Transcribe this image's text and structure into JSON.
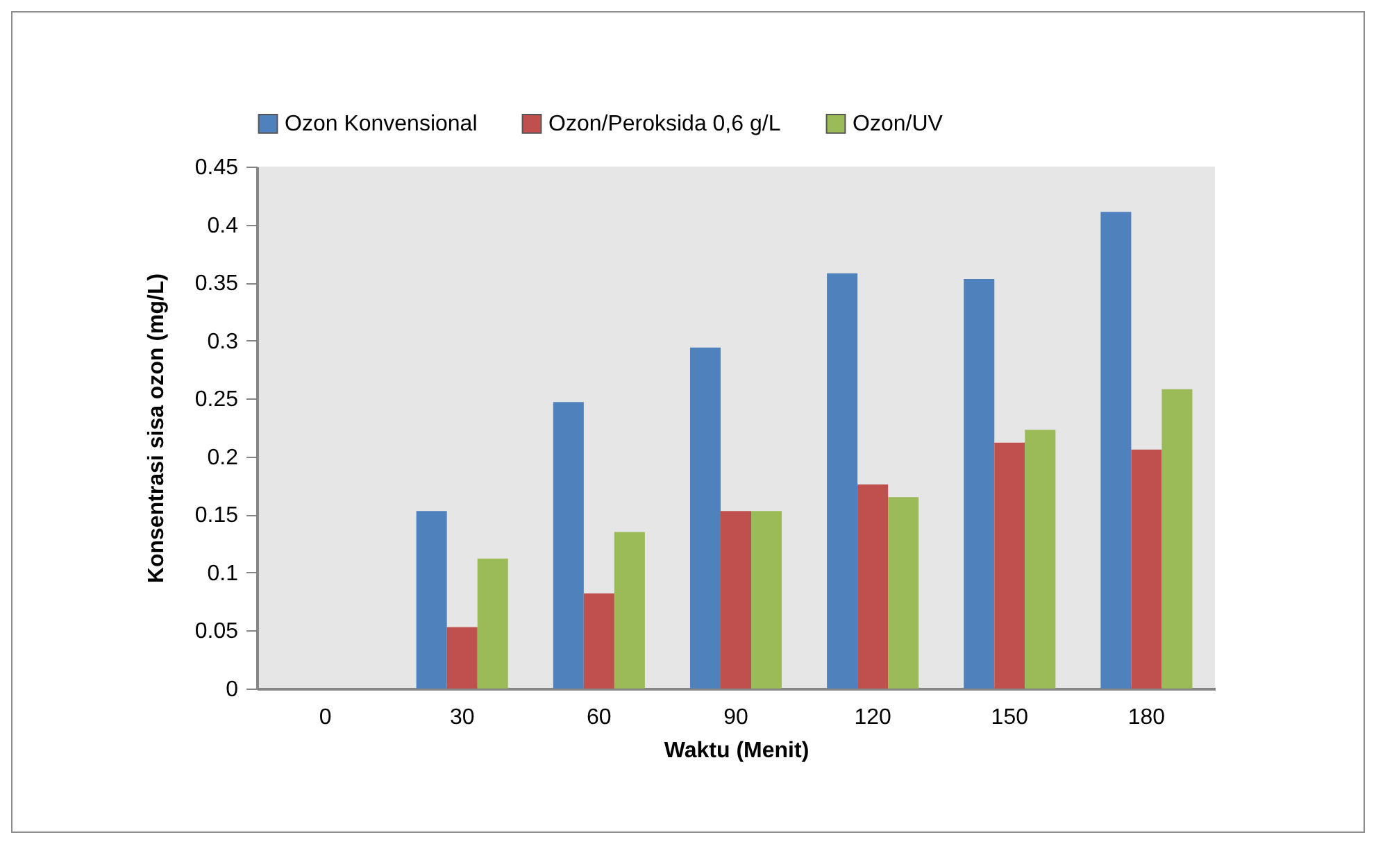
{
  "chart_data": {
    "type": "bar",
    "xlabel": "Waktu (Menit)",
    "ylabel": "Konsentrasi sisa ozon (mg/L)",
    "categories": [
      "0",
      "30",
      "60",
      "90",
      "120",
      "150",
      "180"
    ],
    "series": [
      {
        "name": "Ozon Konvensional",
        "color": "#4f81bd",
        "values": [
          0,
          0.153,
          0.247,
          0.294,
          0.358,
          0.353,
          0.411
        ]
      },
      {
        "name": "Ozon/Peroksida 0,6 g/L",
        "color": "#c0504d",
        "values": [
          0,
          0.053,
          0.082,
          0.153,
          0.176,
          0.212,
          0.206
        ]
      },
      {
        "name": "Ozon/UV",
        "color": "#9bbb59",
        "values": [
          0,
          0.112,
          0.135,
          0.153,
          0.165,
          0.223,
          0.258
        ]
      }
    ],
    "ylim": [
      0,
      0.45
    ],
    "yticks": [
      0,
      0.05,
      0.1,
      0.15,
      0.2,
      0.25,
      0.3,
      0.35,
      0.4,
      0.45
    ],
    "grid": false,
    "legend": "top"
  }
}
